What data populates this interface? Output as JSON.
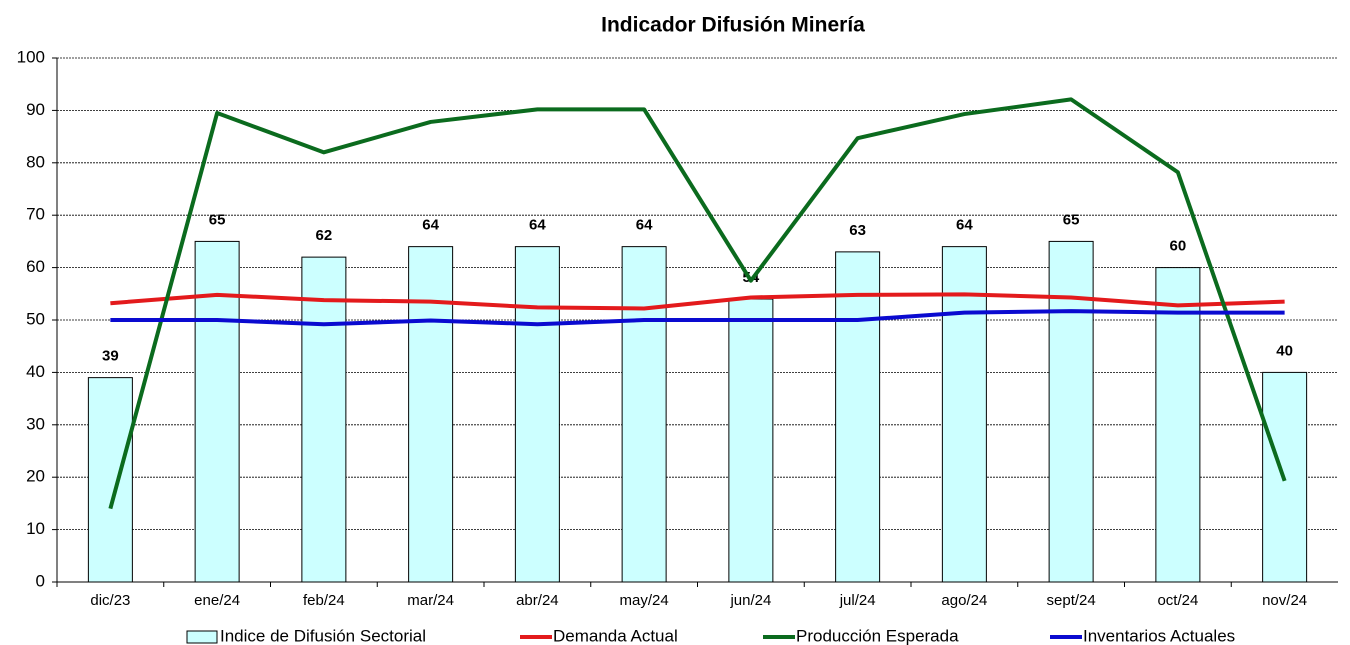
{
  "chart_data": {
    "type": "bar",
    "title": "Indicador Difusión Minería",
    "categories": [
      "dic/23",
      "ene/24",
      "feb/24",
      "mar/24",
      "abr/24",
      "may/24",
      "jun/24",
      "jul/24",
      "ago/24",
      "sept/24",
      "oct/24",
      "nov/24"
    ],
    "series": [
      {
        "name": "Indice de Difusión Sectorial",
        "type": "bar",
        "color": "#ccffff",
        "values": [
          39,
          65,
          62,
          64,
          64,
          64,
          54,
          63,
          64,
          65,
          60,
          40
        ]
      },
      {
        "name": "Demanda Actual",
        "type": "line",
        "color": "#e31a1c",
        "values": [
          53.2,
          54.8,
          53.8,
          53.5,
          52.4,
          52.2,
          54.3,
          54.8,
          54.9,
          54.3,
          52.8,
          53.5
        ]
      },
      {
        "name": "Producción Esperada",
        "type": "line",
        "color": "#0b6b1e",
        "values": [
          14,
          89.5,
          82,
          87.8,
          90.2,
          90.2,
          57.5,
          84.7,
          89.3,
          92.1,
          78.2,
          19.3
        ]
      },
      {
        "name": "Inventarios Actuales",
        "type": "line",
        "color": "#0a0ad0",
        "values": [
          50,
          50,
          49.2,
          49.9,
          49.2,
          50,
          50,
          50,
          51.4,
          51.7,
          51.4,
          51.4
        ]
      }
    ],
    "ylim": [
      0,
      100
    ],
    "yticks": [
      0,
      10,
      20,
      30,
      40,
      50,
      60,
      70,
      80,
      90,
      100
    ],
    "grid": true,
    "legend": "bottom"
  }
}
